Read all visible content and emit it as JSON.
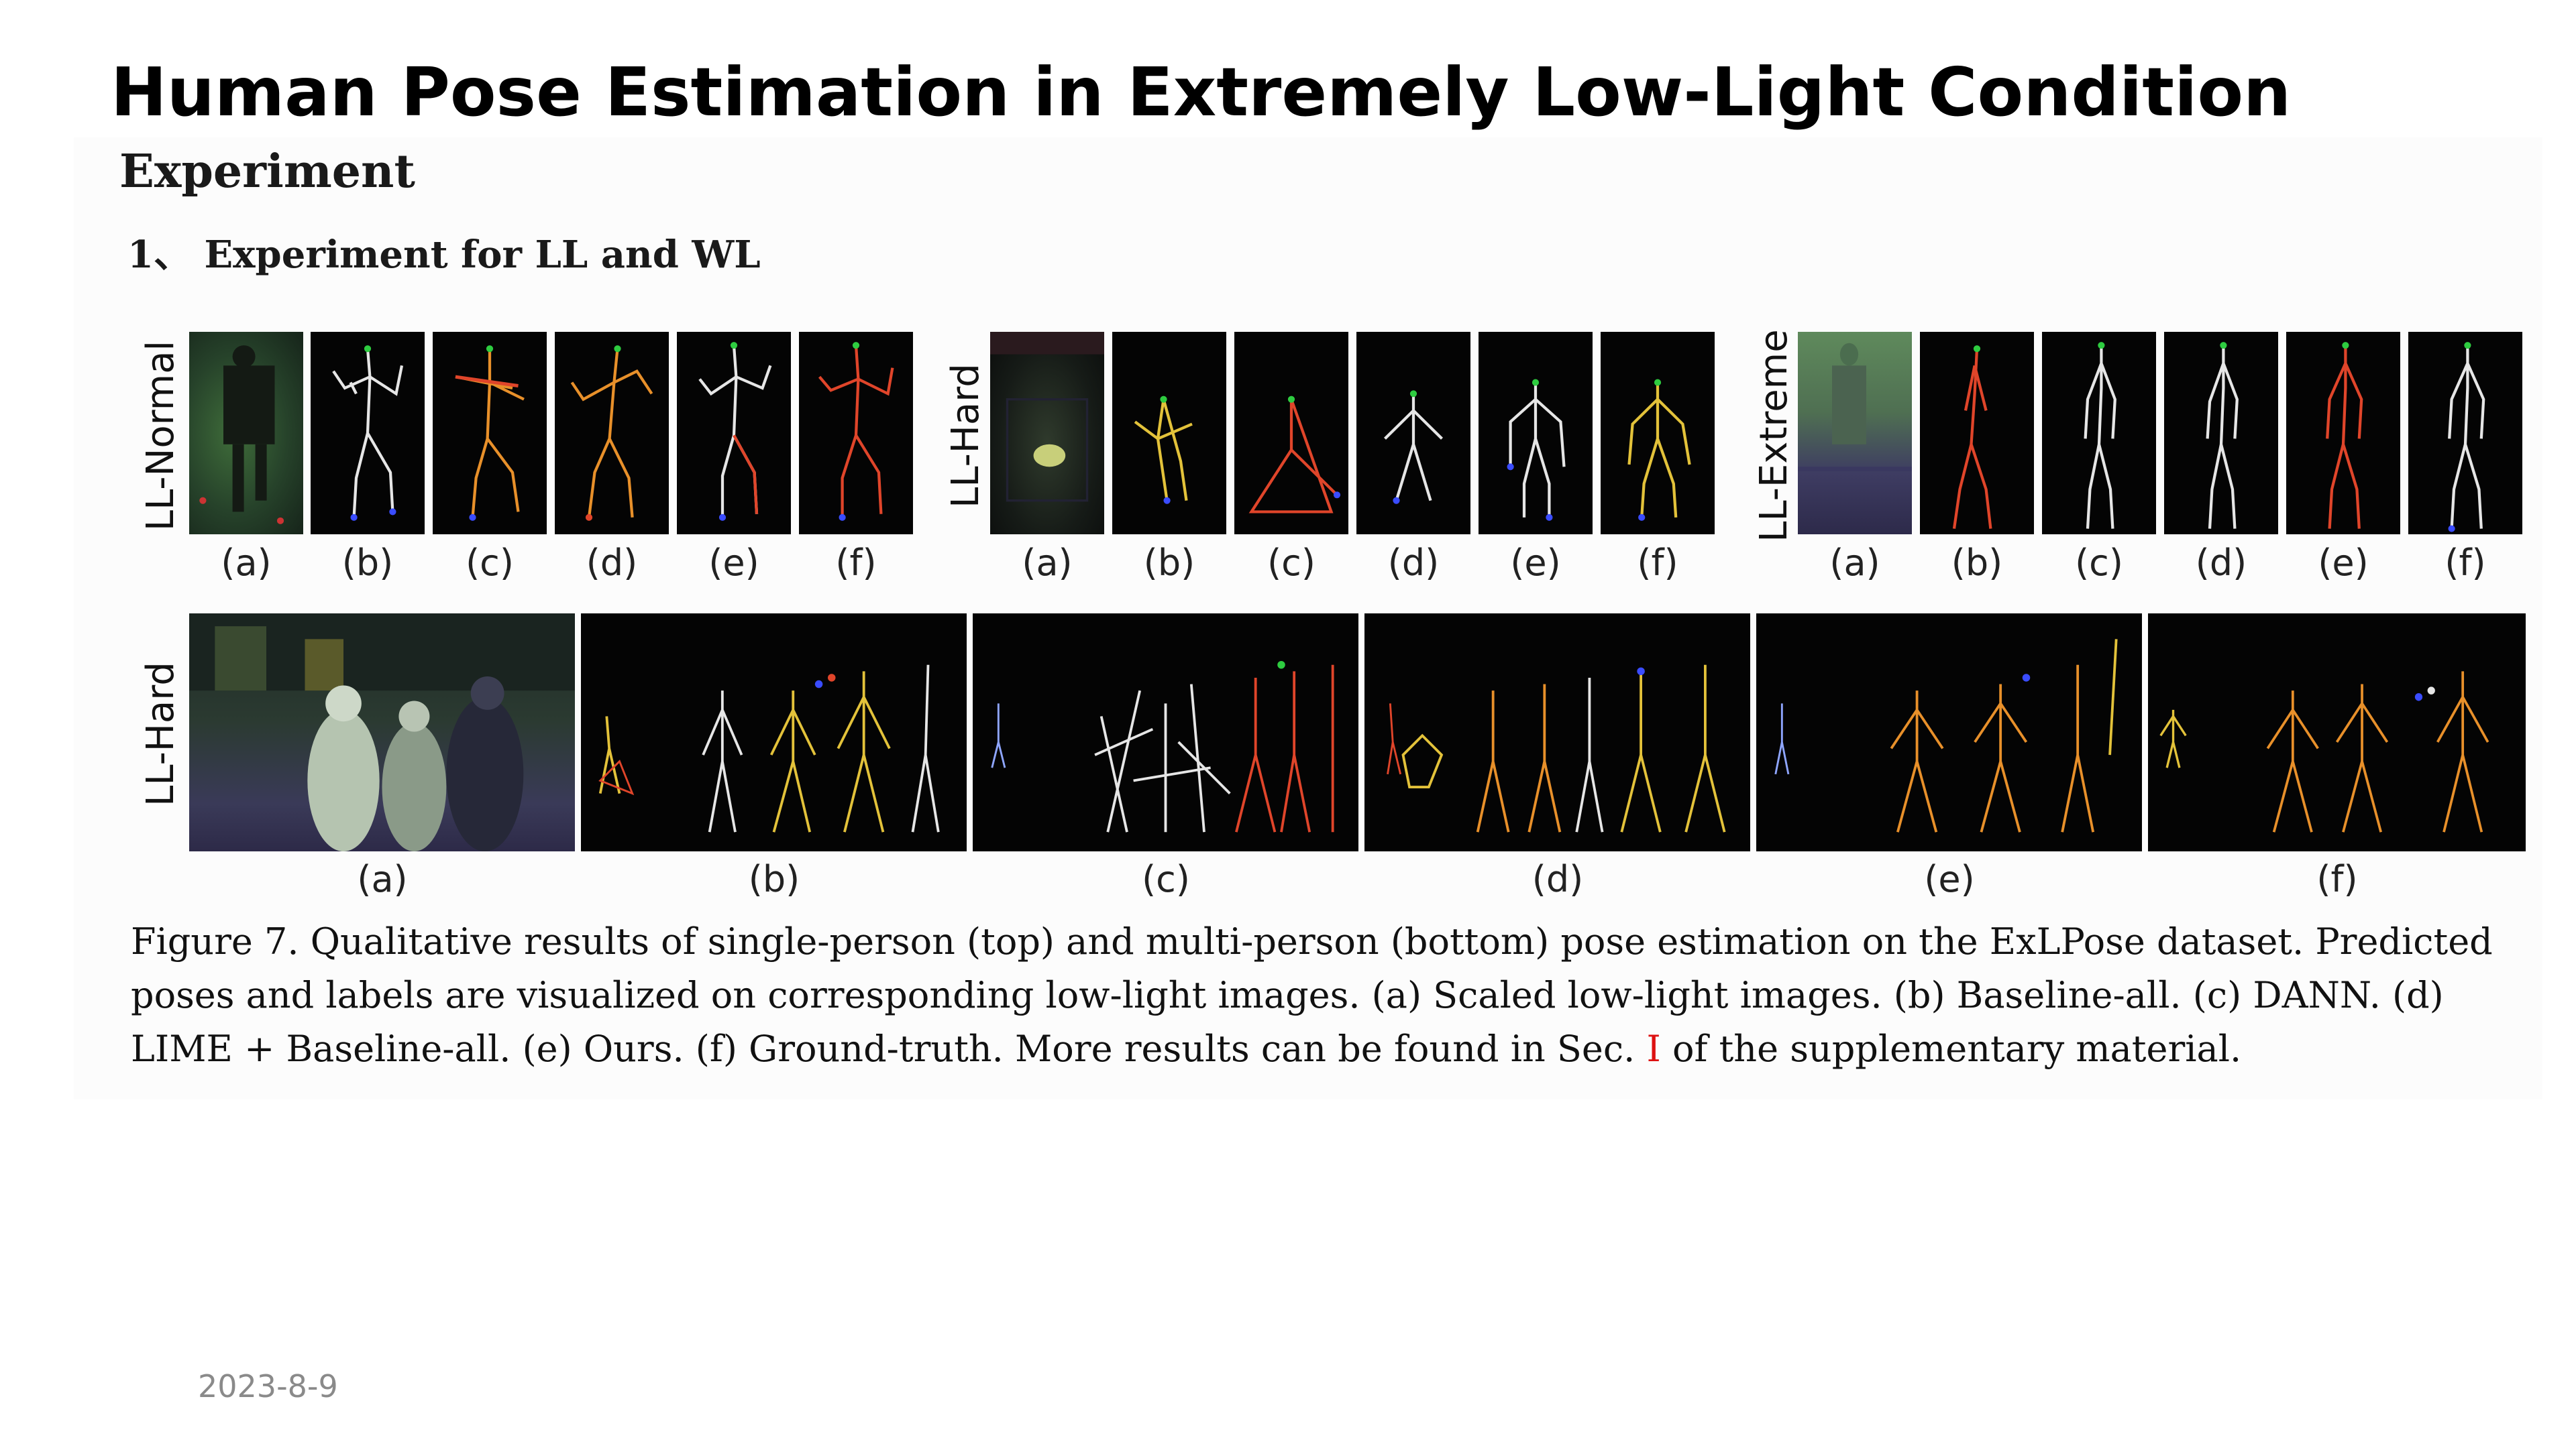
{
  "slide": {
    "title": "Human Pose Estimation in Extremely Low-Light Condition",
    "section_heading": "Experiment",
    "subsection_heading": "1、 Experiment for LL and WL",
    "date": "2023-8-9"
  },
  "figure": {
    "row_labels": {
      "ll_normal": "LL-Normal",
      "ll_hard_top": "LL-Hard",
      "ll_extreme": "LL-Extreme",
      "ll_hard_bottom": "LL-Hard"
    },
    "panel_labels": [
      "(a)",
      "(b)",
      "(c)",
      "(d)",
      "(e)",
      "(f)"
    ],
    "caption": {
      "text_before_ref": "Figure 7. Qualitative results of single-person (top) and multi-person (bottom) pose estimation on the ExLPose dataset. Predicted poses and labels are visualized on corresponding low-light images. (a) Scaled low-light images. (b) Baseline-all. (c) DANN. (d) LIME + Baseline-all. (e) Ours. (f) Ground-truth. More results can be found in Sec. ",
      "ref": "I",
      "text_after_ref": " of the supplementary material."
    }
  },
  "colors": {
    "skeleton_white": "#e6e6e6",
    "skeleton_orange": "#e8902a",
    "skeleton_red": "#e0452a",
    "skeleton_yellow": "#e3c23a",
    "joint_green": "#2ecc40",
    "joint_blue": "#3a4cff",
    "ref_red": "#dd1111"
  }
}
